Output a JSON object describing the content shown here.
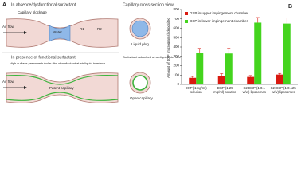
{
  "diagram": {
    "label": "A",
    "top_title": "In absence/dysfunctional surfactant",
    "top_blockage": "Capillary blockage",
    "top_water": "Water",
    "top_air": "Air flow",
    "r1": "R1",
    "r2": "R2",
    "side_title": "Capillary cross section view",
    "liquid_plug": "Liquid plug",
    "bottom_title": "In presence of functional surfactant",
    "bottom_film": "High surface pressure tubular film of surfactant at air-liquid interface",
    "bottom_patent": "Patent capillary",
    "bottom_air": "Air flow",
    "adsorbed": "Surfactant adsorbed at air-liquid interface",
    "open": "Open capillary"
  },
  "chart_data": {
    "type": "bar",
    "label": "B",
    "y_label": "Amount of DXP (micrograms) deposited",
    "categories": [
      "DXP (1mg/ml) solution",
      "DXP (1.25 mg/ml) solution",
      "S2:DXP (1:0.1 w/w) liposomes",
      "S2:DXP (1:0.125 w/w) liposomes"
    ],
    "series": [
      {
        "name": "DXP in upper impingement chamber",
        "color": "#d9190f",
        "values": [
          70,
          90,
          80,
          105
        ],
        "errors": [
          15,
          25,
          15,
          12
        ]
      },
      {
        "name": "DXP in lower impingement chamber",
        "color": "#44d41e",
        "values": [
          335,
          330,
          660,
          650
        ],
        "errors": [
          50,
          55,
          55,
          60
        ]
      }
    ],
    "ylim": [
      0,
      800
    ],
    "yticks": [
      0,
      100,
      200,
      300,
      400,
      500,
      600,
      700,
      800
    ],
    "error_color": "#d9190f"
  }
}
